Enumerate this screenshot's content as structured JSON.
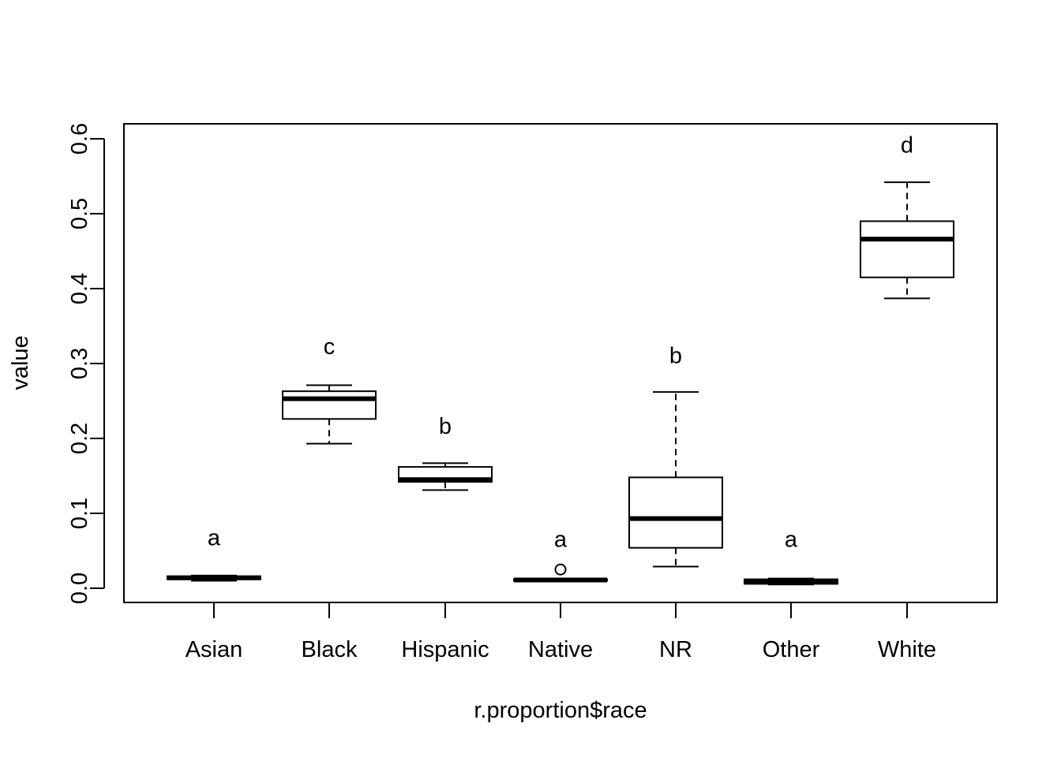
{
  "chart_data": {
    "type": "boxplot",
    "xlabel": "r.proportion$race",
    "ylabel": "value",
    "ylim": [
      -0.02,
      0.6
    ],
    "y_ticks": [
      "0.0",
      "0.1",
      "0.2",
      "0.3",
      "0.4",
      "0.5",
      "0.6"
    ],
    "categories": [
      "Asian",
      "Black",
      "Hispanic",
      "Native",
      "NR",
      "Other",
      "White"
    ],
    "boxes": [
      {
        "category": "Asian",
        "min": 0.01,
        "q1": 0.012,
        "median": 0.014,
        "q3": 0.016,
        "max": 0.017,
        "outliers": [],
        "group_letter": "a",
        "letter_y": 0.068
      },
      {
        "category": "Black",
        "min": 0.193,
        "q1": 0.226,
        "median": 0.253,
        "q3": 0.263,
        "max": 0.271,
        "outliers": [],
        "group_letter": "c",
        "letter_y": 0.323
      },
      {
        "category": "Hispanic",
        "min": 0.131,
        "q1": 0.142,
        "median": 0.145,
        "q3": 0.162,
        "max": 0.167,
        "outliers": [],
        "group_letter": "b",
        "letter_y": 0.217
      },
      {
        "category": "Native",
        "min": 0.009,
        "q1": 0.01,
        "median": 0.011,
        "q3": 0.012,
        "max": 0.013,
        "outliers": [
          0.025
        ],
        "group_letter": "a",
        "letter_y": 0.066
      },
      {
        "category": "NR",
        "min": 0.029,
        "q1": 0.054,
        "median": 0.093,
        "q3": 0.148,
        "max": 0.262,
        "outliers": [],
        "group_letter": "b",
        "letter_y": 0.311
      },
      {
        "category": "Other",
        "min": 0.005,
        "q1": 0.006,
        "median": 0.008,
        "q3": 0.012,
        "max": 0.013,
        "outliers": [],
        "group_letter": "a",
        "letter_y": 0.066
      },
      {
        "category": "White",
        "min": 0.387,
        "q1": 0.415,
        "median": 0.466,
        "q3": 0.49,
        "max": 0.542,
        "outliers": [],
        "group_letter": "d",
        "letter_y": 0.592
      }
    ]
  }
}
